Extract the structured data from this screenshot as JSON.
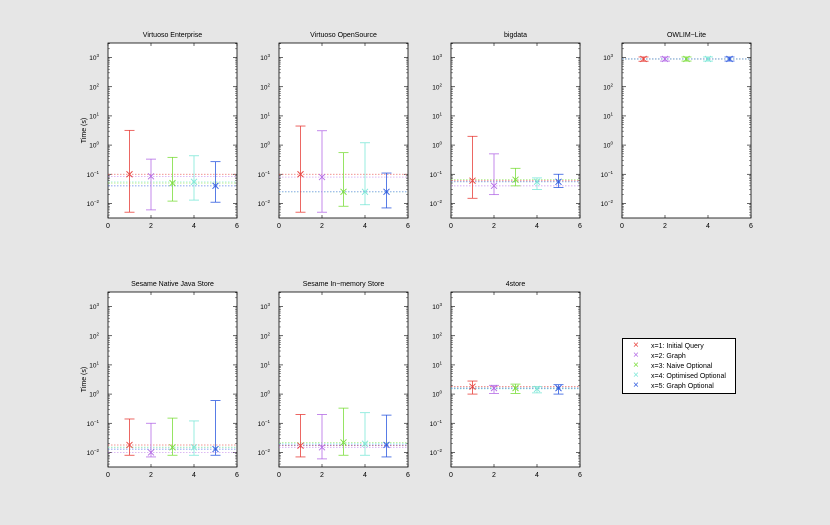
{
  "colors": {
    "figure_bg": "#e6e6e6",
    "axes_bg": "#ffffff",
    "series": [
      "#e8413c",
      "#b56de6",
      "#7cde3c",
      "#7ee8d8",
      "#2f5be0"
    ]
  },
  "legend": {
    "entries": [
      "x=1: Initial Query",
      "x=2: Graph",
      "x=3: Naive Optional",
      "x=4: Optimised Optional",
      "x=5: Graph Optional"
    ]
  },
  "chart_data": [
    {
      "type": "errorbar",
      "title": "Virtuoso Enterprise",
      "ylabel": "Time (s)",
      "xlim": [
        0,
        6
      ],
      "ylim_log10": [
        -2.5,
        3.5
      ],
      "xticks": [
        "0",
        "2",
        "4",
        "6"
      ],
      "points": [
        {
          "x": 1,
          "y": 0.1,
          "lo": 0.005,
          "hi": 3.2
        },
        {
          "x": 2,
          "y": 0.085,
          "lo": 0.006,
          "hi": 0.33
        },
        {
          "x": 3,
          "y": 0.05,
          "lo": 0.012,
          "hi": 0.38
        },
        {
          "x": 4,
          "y": 0.055,
          "lo": 0.013,
          "hi": 0.43
        },
        {
          "x": 5,
          "y": 0.04,
          "lo": 0.011,
          "hi": 0.27
        }
      ]
    },
    {
      "type": "errorbar",
      "title": "Virtuoso OpenSource",
      "ylabel": "",
      "xlim": [
        0,
        6
      ],
      "ylim_log10": [
        -2.5,
        3.5
      ],
      "xticks": [
        "0",
        "2",
        "4",
        "6"
      ],
      "points": [
        {
          "x": 1,
          "y": 0.1,
          "lo": 0.005,
          "hi": 4.5
        },
        {
          "x": 2,
          "y": 0.08,
          "lo": 0.005,
          "hi": 3.1
        },
        {
          "x": 3,
          "y": 0.025,
          "lo": 0.008,
          "hi": 0.55
        },
        {
          "x": 4,
          "y": 0.025,
          "lo": 0.009,
          "hi": 1.2
        },
        {
          "x": 5,
          "y": 0.025,
          "lo": 0.007,
          "hi": 0.11
        }
      ]
    },
    {
      "type": "errorbar",
      "title": "bigdata",
      "ylabel": "",
      "xlim": [
        0,
        6
      ],
      "ylim_log10": [
        -2.5,
        3.5
      ],
      "xticks": [
        "0",
        "2",
        "4",
        "6"
      ],
      "points": [
        {
          "x": 1,
          "y": 0.06,
          "lo": 0.015,
          "hi": 2.0
        },
        {
          "x": 2,
          "y": 0.04,
          "lo": 0.02,
          "hi": 0.5
        },
        {
          "x": 3,
          "y": 0.065,
          "lo": 0.04,
          "hi": 0.16
        },
        {
          "x": 4,
          "y": 0.055,
          "lo": 0.03,
          "hi": 0.075
        },
        {
          "x": 5,
          "y": 0.055,
          "lo": 0.035,
          "hi": 0.1
        }
      ]
    },
    {
      "type": "errorbar",
      "title": "OWLIM−Lite",
      "ylabel": "",
      "xlim": [
        0,
        6
      ],
      "ylim_log10": [
        -2.5,
        3.5
      ],
      "xticks": [
        "0",
        "2",
        "4",
        "6"
      ],
      "points": [
        {
          "x": 1,
          "y": 900,
          "lo": 750,
          "hi": 1050
        },
        {
          "x": 2,
          "y": 900,
          "lo": 760,
          "hi": 1050
        },
        {
          "x": 3,
          "y": 900,
          "lo": 760,
          "hi": 1050
        },
        {
          "x": 4,
          "y": 900,
          "lo": 760,
          "hi": 1050
        },
        {
          "x": 5,
          "y": 900,
          "lo": 760,
          "hi": 1050
        }
      ]
    },
    {
      "type": "errorbar",
      "title": "Sesame Native Java Store",
      "ylabel": "Time (s)",
      "xlim": [
        0,
        6
      ],
      "ylim_log10": [
        -2.5,
        3.5
      ],
      "xticks": [
        "0",
        "2",
        "4",
        "6"
      ],
      "points": [
        {
          "x": 1,
          "y": 0.018,
          "lo": 0.008,
          "hi": 0.14
        },
        {
          "x": 2,
          "y": 0.01,
          "lo": 0.007,
          "hi": 0.1
        },
        {
          "x": 3,
          "y": 0.015,
          "lo": 0.008,
          "hi": 0.15
        },
        {
          "x": 4,
          "y": 0.015,
          "lo": 0.008,
          "hi": 0.12
        },
        {
          "x": 5,
          "y": 0.013,
          "lo": 0.008,
          "hi": 0.6
        }
      ]
    },
    {
      "type": "errorbar",
      "title": "Sesame In−memory Store",
      "ylabel": "",
      "xlim": [
        0,
        6
      ],
      "ylim_log10": [
        -2.5,
        3.5
      ],
      "xticks": [
        "0",
        "2",
        "4",
        "6"
      ],
      "points": [
        {
          "x": 1,
          "y": 0.017,
          "lo": 0.007,
          "hi": 0.2
        },
        {
          "x": 2,
          "y": 0.015,
          "lo": 0.006,
          "hi": 0.2
        },
        {
          "x": 3,
          "y": 0.022,
          "lo": 0.008,
          "hi": 0.33
        },
        {
          "x": 4,
          "y": 0.02,
          "lo": 0.008,
          "hi": 0.23
        },
        {
          "x": 5,
          "y": 0.018,
          "lo": 0.007,
          "hi": 0.19
        }
      ]
    },
    {
      "type": "errorbar",
      "title": "4store",
      "ylabel": "",
      "xlim": [
        0,
        6
      ],
      "ylim_log10": [
        -2.5,
        3.5
      ],
      "xticks": [
        "0",
        "2",
        "4",
        "6"
      ],
      "points": [
        {
          "x": 1,
          "y": 1.8,
          "lo": 1.0,
          "hi": 2.8
        },
        {
          "x": 2,
          "y": 1.6,
          "lo": 1.05,
          "hi": 2.0
        },
        {
          "x": 3,
          "y": 1.6,
          "lo": 1.05,
          "hi": 2.2
        },
        {
          "x": 4,
          "y": 1.5,
          "lo": 1.1,
          "hi": 1.8
        },
        {
          "x": 5,
          "y": 1.6,
          "lo": 1.0,
          "hi": 2.1
        }
      ]
    }
  ]
}
